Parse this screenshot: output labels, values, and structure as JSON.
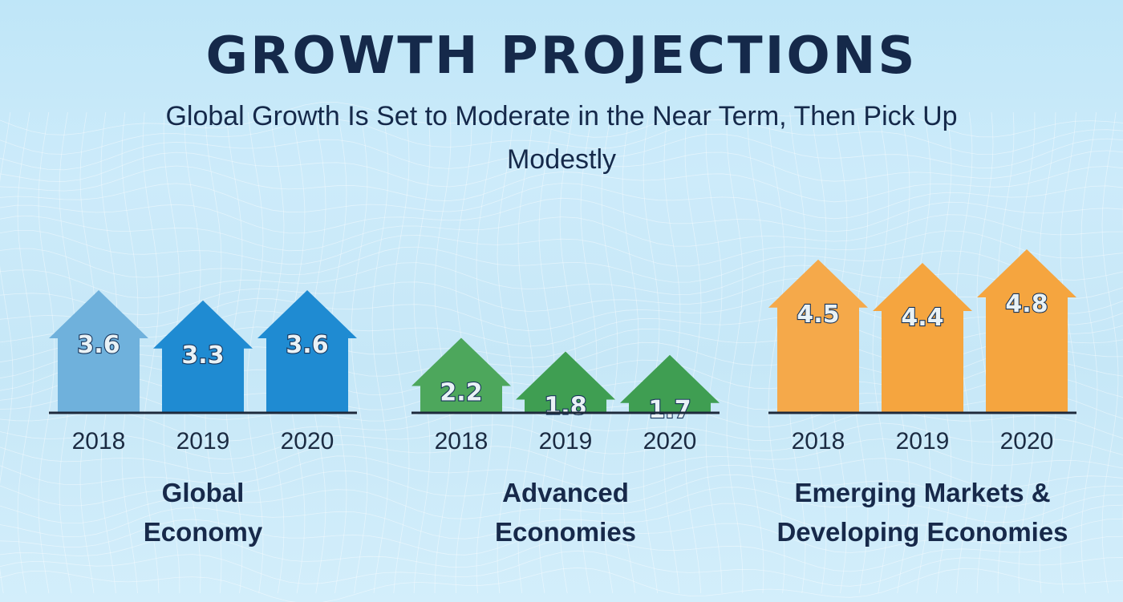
{
  "header": {
    "title": "GROWTH PROJECTIONS",
    "subtitle": "Global Growth Is Set to Moderate in the Near Term, Then Pick Up Modestly"
  },
  "chart_data": [
    {
      "type": "bar",
      "title": "Global Economy",
      "title_lines": [
        "Global",
        "Economy"
      ],
      "categories": [
        "2018",
        "2019",
        "2020"
      ],
      "values": [
        3.6,
        3.3,
        3.6
      ],
      "colors": [
        "#6fb1dc",
        "#1f8bd2",
        "#1f8bd2"
      ],
      "grid": false
    },
    {
      "type": "bar",
      "title": "Advanced Economies",
      "title_lines": [
        "Advanced",
        "Economies"
      ],
      "categories": [
        "2018",
        "2019",
        "2020"
      ],
      "values": [
        2.2,
        1.8,
        1.7
      ],
      "colors": [
        "#4da75c",
        "#3f9e52",
        "#3f9e52"
      ],
      "grid": false
    },
    {
      "type": "bar",
      "title": "Emerging Markets & Developing Economies",
      "title_lines": [
        "Emerging Markets &",
        "Developing Economies"
      ],
      "categories": [
        "2018",
        "2019",
        "2020"
      ],
      "values": [
        4.5,
        4.4,
        4.8
      ],
      "colors": [
        "#f5a94a",
        "#f5a53f",
        "#f5a53f"
      ],
      "grid": false
    }
  ]
}
